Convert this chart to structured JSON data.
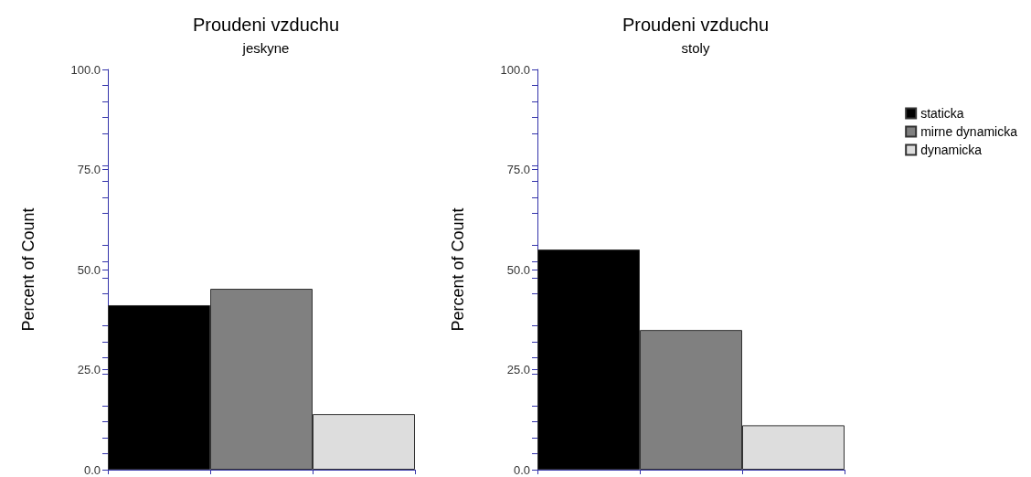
{
  "chart_data": [
    {
      "type": "bar",
      "title": "Proudeni vzduchu",
      "subtitle": "jeskyne",
      "ylabel": "Percent of Count",
      "categories": [
        null,
        null,
        null
      ],
      "series": [
        {
          "color": "#000000",
          "values": [
            41.1,
            null,
            null
          ]
        },
        {
          "color": "#808080",
          "values": [
            null,
            45.2,
            null
          ]
        },
        {
          "color": "#dddddd",
          "values": [
            null,
            null,
            13.9
          ]
        }
      ],
      "ylim": [
        0,
        100
      ],
      "yticks": [
        {
          "value": 0,
          "label": "0.0"
        },
        {
          "value": 25,
          "label": "25.0"
        },
        {
          "value": 50,
          "label": "50.0"
        },
        {
          "value": 75,
          "label": "75.0"
        },
        {
          "value": 100,
          "label": "100.0"
        }
      ],
      "grid": false,
      "legend": false
    },
    {
      "type": "bar",
      "title": "Proudeni vzduchu",
      "subtitle": "stoly",
      "ylabel": "Percent of Count",
      "categories": [
        null,
        null,
        null
      ],
      "series": [
        {
          "name": "staticka",
          "color": "#000000",
          "values": [
            55.0,
            null,
            null
          ]
        },
        {
          "name": "mirne dynamicka",
          "color": "#808080",
          "values": [
            null,
            34.9,
            null
          ]
        },
        {
          "name": "dynamicka",
          "color": "#dddddd",
          "values": [
            null,
            null,
            11.1
          ]
        }
      ],
      "ylim": [
        0,
        100
      ],
      "yticks": [
        {
          "value": 0,
          "label": "0.0"
        },
        {
          "value": 25,
          "label": "25.0"
        },
        {
          "value": 50,
          "label": "50.0"
        },
        {
          "value": 75,
          "label": "75.0"
        },
        {
          "value": 100,
          "label": "100.0"
        }
      ],
      "grid": false,
      "legend": "right"
    }
  ]
}
